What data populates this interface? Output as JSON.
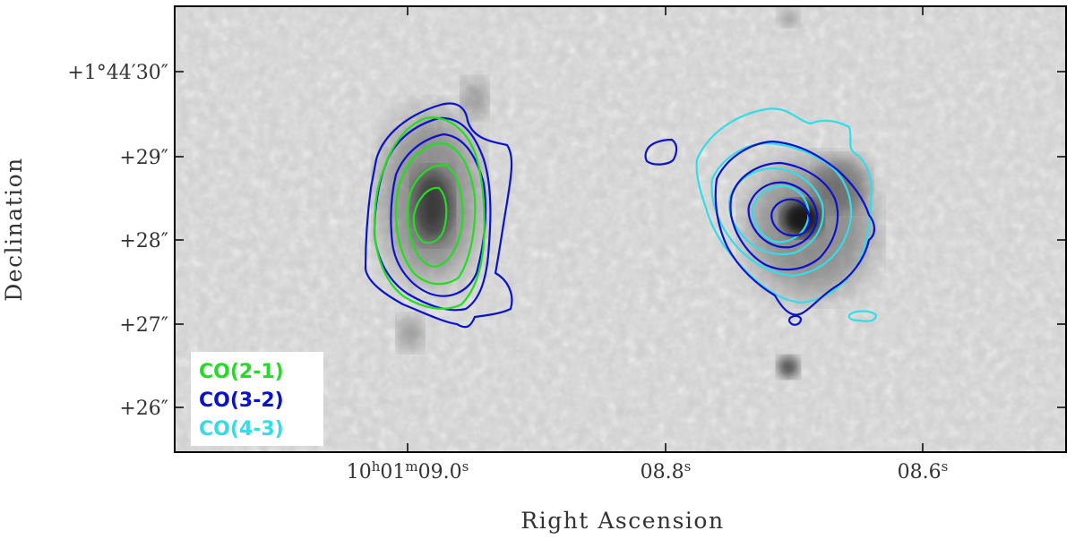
{
  "axes": {
    "xlabel": "Right Ascension",
    "ylabel": "Declination",
    "yticks": [
      {
        "deg": "+1°44′30″"
      },
      {
        "deg": "+29″"
      },
      {
        "deg": "+28″"
      },
      {
        "deg": "+27″"
      },
      {
        "deg": "+26″"
      }
    ],
    "xticks": [
      {
        "h": "10",
        "hs": "h",
        "m": "01",
        "ms": "m",
        "s": "09.0",
        "ss": "s"
      },
      {
        "s": "08.8",
        "ss": "s"
      },
      {
        "s": "08.6",
        "ss": "s"
      }
    ]
  },
  "legend": [
    {
      "label": "CO(2-1)",
      "color": "#22dd22"
    },
    {
      "label": "CO(3-2)",
      "color": "#0a12cc"
    },
    {
      "label": "CO(4-3)",
      "color": "#33dde8"
    }
  ],
  "colors": {
    "background_image": "grayscale",
    "frame": "#000000"
  }
}
